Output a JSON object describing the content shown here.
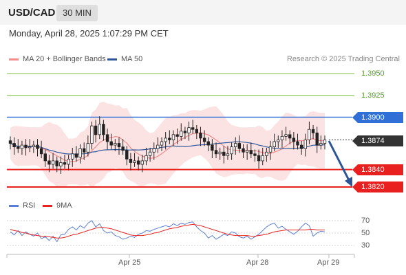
{
  "header": {
    "symbol": "USD/CAD",
    "interval": "30 MIN",
    "datetime": "Monday, April 28, 2025 1:07:29 PM CET"
  },
  "legend": {
    "ma20_bb": "MA 20 + Bollinger Bands",
    "ma50": "MA 50",
    "credit": "Research © 2025 Trading Central",
    "rsi": "RSI",
    "ma9": "9MA"
  },
  "colors": {
    "ma20": "#f28b8b",
    "ma50": "#2c5597",
    "resistance": "#7dbf3f",
    "pivot": "#2f6fd6",
    "support": "#e8201f",
    "current": "#333333",
    "rsi": "#5b7fd6",
    "ma9": "#e8201f",
    "arrow": "#2c5597"
  },
  "levels": {
    "r2": "1.3950",
    "r1": "1.3925",
    "pivot": "1.3900",
    "current": "1.3874",
    "s1": "1.3840",
    "s2": "1.3820"
  },
  "rsi_axis": [
    "70",
    "50",
    "30"
  ],
  "x_axis": {
    "d1": "Apr 25",
    "d2": "Apr 28",
    "d3": "Apr 29"
  },
  "chart_data": {
    "type": "candlestick",
    "pair": "USD/CAD",
    "y_range": [
      1.381,
      1.396
    ],
    "resistance_levels": [
      1.395,
      1.3925
    ],
    "pivot": 1.39,
    "current_price": 1.3874,
    "support_levels": [
      1.384,
      1.382
    ],
    "close": [
      1.387,
      1.3866,
      1.3864,
      1.3868,
      1.3865,
      1.3866,
      1.3868,
      1.3864,
      1.3858,
      1.385,
      1.3846,
      1.385,
      1.3844,
      1.3848,
      1.3846,
      1.3852,
      1.3858,
      1.3854,
      1.3864,
      1.386,
      1.387,
      1.389,
      1.388,
      1.3892,
      1.388,
      1.3872,
      1.3868,
      1.387,
      1.3866,
      1.3862,
      1.3852,
      1.3848,
      1.385,
      1.3846,
      1.385,
      1.3856,
      1.386,
      1.3864,
      1.3868,
      1.3872,
      1.3876,
      1.3874,
      1.388,
      1.3878,
      1.3884,
      1.3882,
      1.3888,
      1.3886,
      1.3882,
      1.3876,
      1.3872,
      1.3868,
      1.3862,
      1.3858,
      1.386,
      1.3856,
      1.3858,
      1.3866,
      1.387,
      1.3864,
      1.386,
      1.3862,
      1.3858,
      1.3856,
      1.385,
      1.3856,
      1.386,
      1.3866,
      1.3872,
      1.3874,
      1.3878,
      1.388,
      1.3876,
      1.3872,
      1.3868,
      1.3864,
      1.3874,
      1.3886,
      1.3882,
      1.3868,
      1.387,
      1.3874
    ],
    "rsi": [
      52,
      47,
      54,
      46,
      52,
      48,
      45,
      50,
      41,
      44,
      38,
      45,
      36,
      47,
      48,
      56,
      60,
      55,
      62,
      58,
      66,
      70,
      60,
      65,
      54,
      50,
      52,
      46,
      44,
      40,
      42,
      45,
      43,
      48,
      50,
      54,
      53,
      56,
      58,
      60,
      62,
      60,
      65,
      62,
      66,
      64,
      67,
      68,
      60,
      54,
      50,
      42,
      46,
      40,
      44,
      48,
      46,
      52,
      50,
      44,
      42,
      45,
      40,
      44,
      48,
      54,
      60,
      64,
      66,
      58,
      61,
      56,
      52,
      48,
      53,
      60,
      66,
      62,
      45,
      50,
      53,
      52
    ],
    "rsi_ma9": [
      56,
      54,
      53,
      51,
      50,
      48,
      47,
      46,
      45,
      45,
      44,
      43,
      42,
      42,
      43,
      45,
      47,
      48,
      50,
      52,
      54,
      56,
      58,
      59,
      59,
      58,
      57,
      55,
      53,
      51,
      49,
      47,
      46,
      46,
      46,
      47,
      48,
      50,
      51,
      53,
      55,
      57,
      58,
      59,
      61,
      62,
      63,
      64,
      63,
      62,
      60,
      58,
      56,
      54,
      52,
      50,
      48,
      47,
      46,
      46,
      46,
      46,
      45,
      45,
      46,
      47,
      48,
      50,
      52,
      53,
      54,
      55,
      55,
      55,
      55,
      55,
      55,
      56,
      56,
      55,
      55,
      55
    ]
  }
}
